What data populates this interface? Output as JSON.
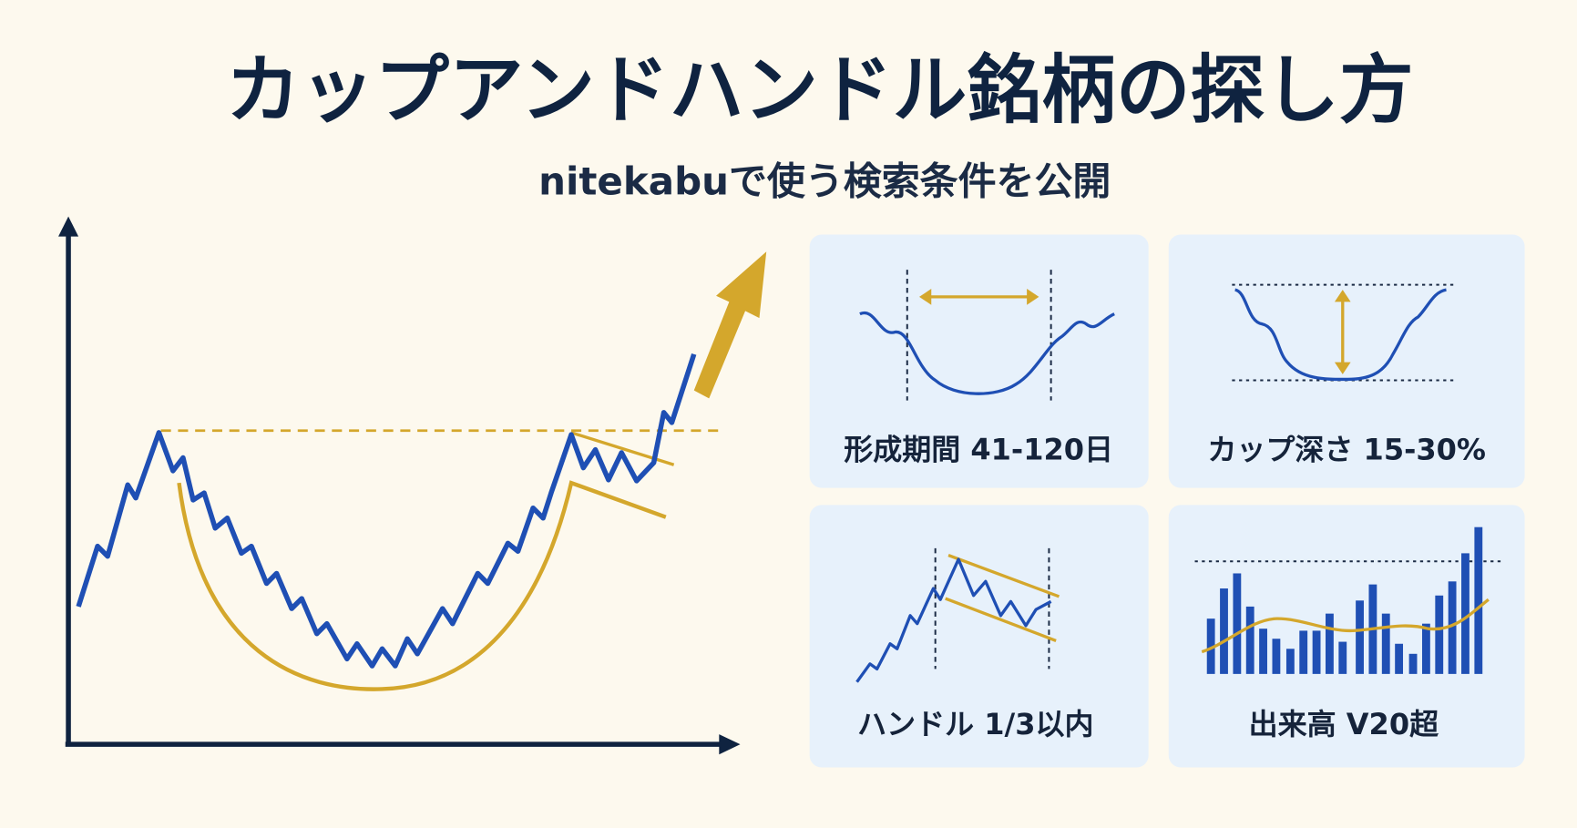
{
  "header": {
    "title": "カップアンドハンドル銘柄の探し方",
    "subtitle": "nitekabuで使う検索条件を公開"
  },
  "cards": [
    {
      "label": "形成期間 41-120日"
    },
    {
      "label": "カップ深さ 15-30%"
    },
    {
      "label": "ハンドル 1/3以内"
    },
    {
      "label": "出来高 V20超"
    }
  ]
}
